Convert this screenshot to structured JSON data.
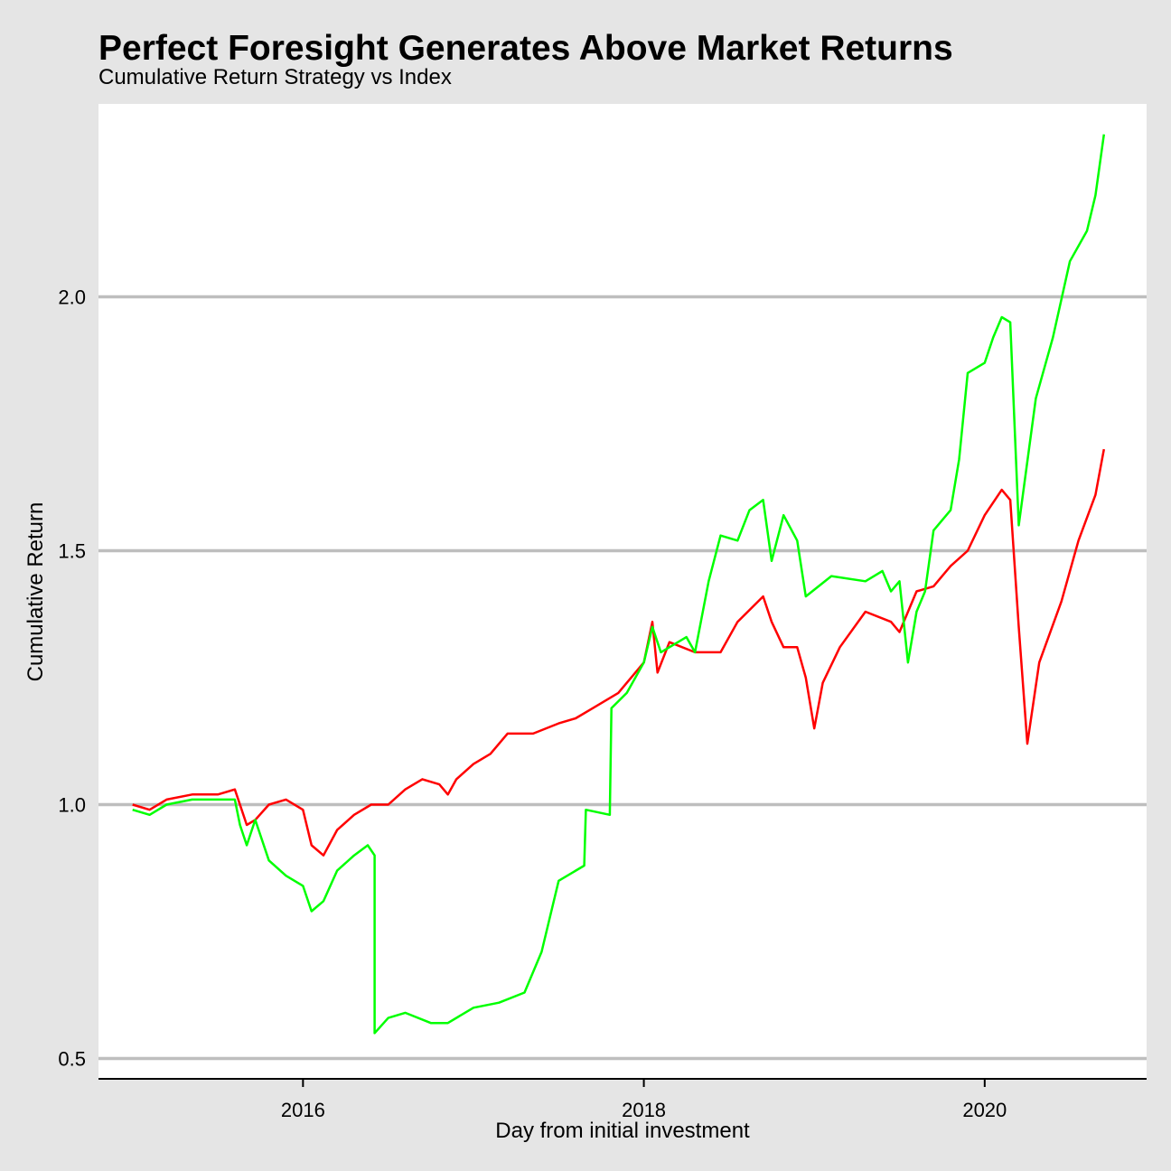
{
  "chart_data": {
    "type": "line",
    "title": "Perfect Foresight Generates Above Market Returns",
    "subtitle": "Cumulative Return Strategy vs Index",
    "xlabel": "Day from initial investment",
    "ylabel": "Cumulative Return",
    "x_ticks": [
      "2016",
      "2018",
      "2020"
    ],
    "y_ticks": [
      "0.5",
      "1.0",
      "1.5",
      "2.0"
    ],
    "xlim": [
      2014.8,
      2020.95
    ],
    "ylim": [
      0.46,
      2.38
    ],
    "grid": "horizontal",
    "legend": "none",
    "series": [
      {
        "color": "#ff0000",
        "points": [
          [
            2015.0,
            1.0
          ],
          [
            2015.1,
            0.99
          ],
          [
            2015.2,
            1.01
          ],
          [
            2015.35,
            1.02
          ],
          [
            2015.5,
            1.02
          ],
          [
            2015.6,
            1.03
          ],
          [
            2015.62,
            1.01
          ],
          [
            2015.67,
            0.96
          ],
          [
            2015.72,
            0.97
          ],
          [
            2015.8,
            1.0
          ],
          [
            2015.9,
            1.01
          ],
          [
            2016.0,
            0.99
          ],
          [
            2016.05,
            0.92
          ],
          [
            2016.12,
            0.9
          ],
          [
            2016.2,
            0.95
          ],
          [
            2016.3,
            0.98
          ],
          [
            2016.4,
            1.0
          ],
          [
            2016.5,
            1.0
          ],
          [
            2016.6,
            1.03
          ],
          [
            2016.7,
            1.05
          ],
          [
            2016.8,
            1.04
          ],
          [
            2016.85,
            1.02
          ],
          [
            2016.9,
            1.05
          ],
          [
            2017.0,
            1.08
          ],
          [
            2017.1,
            1.1
          ],
          [
            2017.2,
            1.14
          ],
          [
            2017.35,
            1.14
          ],
          [
            2017.5,
            1.16
          ],
          [
            2017.6,
            1.17
          ],
          [
            2017.7,
            1.19
          ],
          [
            2017.85,
            1.22
          ],
          [
            2018.0,
            1.28
          ],
          [
            2018.05,
            1.36
          ],
          [
            2018.08,
            1.26
          ],
          [
            2018.15,
            1.32
          ],
          [
            2018.3,
            1.3
          ],
          [
            2018.45,
            1.3
          ],
          [
            2018.55,
            1.36
          ],
          [
            2018.7,
            1.41
          ],
          [
            2018.75,
            1.36
          ],
          [
            2018.82,
            1.31
          ],
          [
            2018.9,
            1.31
          ],
          [
            2018.95,
            1.25
          ],
          [
            2019.0,
            1.15
          ],
          [
            2019.05,
            1.24
          ],
          [
            2019.15,
            1.31
          ],
          [
            2019.3,
            1.38
          ],
          [
            2019.45,
            1.36
          ],
          [
            2019.5,
            1.34
          ],
          [
            2019.6,
            1.42
          ],
          [
            2019.7,
            1.43
          ],
          [
            2019.8,
            1.47
          ],
          [
            2019.9,
            1.5
          ],
          [
            2020.0,
            1.57
          ],
          [
            2020.1,
            1.62
          ],
          [
            2020.15,
            1.6
          ],
          [
            2020.2,
            1.35
          ],
          [
            2020.25,
            1.12
          ],
          [
            2020.32,
            1.28
          ],
          [
            2020.45,
            1.4
          ],
          [
            2020.55,
            1.52
          ],
          [
            2020.65,
            1.61
          ],
          [
            2020.7,
            1.7
          ]
        ]
      },
      {
        "color": "#00ff00",
        "points": [
          [
            2015.0,
            0.99
          ],
          [
            2015.1,
            0.98
          ],
          [
            2015.2,
            1.0
          ],
          [
            2015.35,
            1.01
          ],
          [
            2015.5,
            1.01
          ],
          [
            2015.6,
            1.01
          ],
          [
            2015.63,
            0.96
          ],
          [
            2015.67,
            0.92
          ],
          [
            2015.72,
            0.97
          ],
          [
            2015.8,
            0.89
          ],
          [
            2015.9,
            0.86
          ],
          [
            2016.0,
            0.84
          ],
          [
            2016.05,
            0.79
          ],
          [
            2016.12,
            0.81
          ],
          [
            2016.2,
            0.87
          ],
          [
            2016.3,
            0.9
          ],
          [
            2016.38,
            0.92
          ],
          [
            2016.42,
            0.9
          ],
          [
            2016.42,
            0.55
          ],
          [
            2016.5,
            0.58
          ],
          [
            2016.6,
            0.59
          ],
          [
            2016.75,
            0.57
          ],
          [
            2016.85,
            0.57
          ],
          [
            2017.0,
            0.6
          ],
          [
            2017.15,
            0.61
          ],
          [
            2017.3,
            0.63
          ],
          [
            2017.4,
            0.71
          ],
          [
            2017.5,
            0.85
          ],
          [
            2017.65,
            0.88
          ],
          [
            2017.66,
            0.99
          ],
          [
            2017.8,
            0.98
          ],
          [
            2017.81,
            1.19
          ],
          [
            2017.9,
            1.22
          ],
          [
            2018.0,
            1.28
          ],
          [
            2018.05,
            1.35
          ],
          [
            2018.1,
            1.3
          ],
          [
            2018.2,
            1.32
          ],
          [
            2018.25,
            1.33
          ],
          [
            2018.3,
            1.3
          ],
          [
            2018.38,
            1.44
          ],
          [
            2018.45,
            1.53
          ],
          [
            2018.55,
            1.52
          ],
          [
            2018.62,
            1.58
          ],
          [
            2018.7,
            1.6
          ],
          [
            2018.75,
            1.48
          ],
          [
            2018.82,
            1.57
          ],
          [
            2018.9,
            1.52
          ],
          [
            2018.95,
            1.41
          ],
          [
            2019.1,
            1.45
          ],
          [
            2019.3,
            1.44
          ],
          [
            2019.4,
            1.46
          ],
          [
            2019.45,
            1.42
          ],
          [
            2019.5,
            1.44
          ],
          [
            2019.55,
            1.28
          ],
          [
            2019.6,
            1.38
          ],
          [
            2019.65,
            1.42
          ],
          [
            2019.7,
            1.54
          ],
          [
            2019.8,
            1.58
          ],
          [
            2019.85,
            1.68
          ],
          [
            2019.9,
            1.85
          ],
          [
            2020.0,
            1.87
          ],
          [
            2020.05,
            1.92
          ],
          [
            2020.1,
            1.96
          ],
          [
            2020.15,
            1.95
          ],
          [
            2020.2,
            1.55
          ],
          [
            2020.3,
            1.8
          ],
          [
            2020.4,
            1.92
          ],
          [
            2020.5,
            2.07
          ],
          [
            2020.6,
            2.13
          ],
          [
            2020.65,
            2.2
          ],
          [
            2020.7,
            2.32
          ]
        ]
      }
    ]
  }
}
